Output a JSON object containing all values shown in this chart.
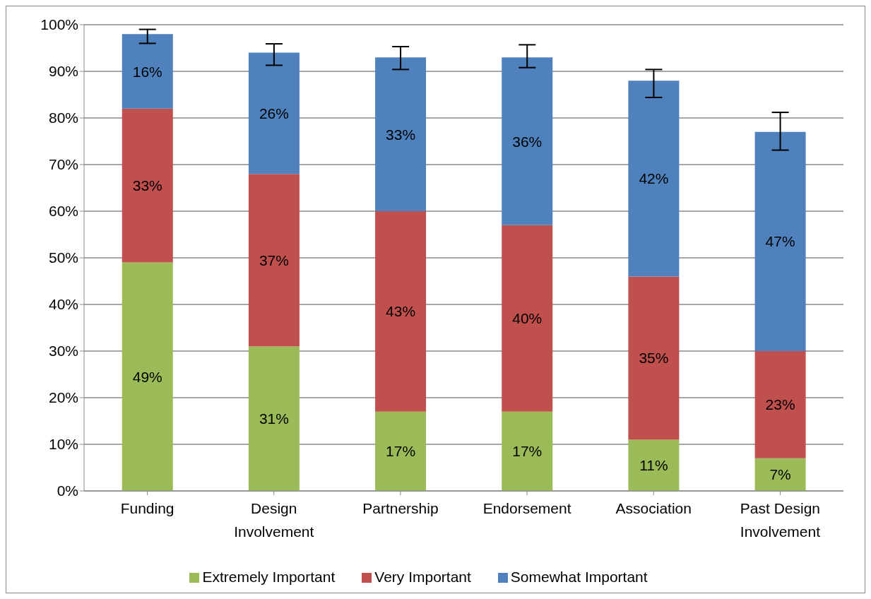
{
  "chart_data": {
    "type": "bar",
    "stacked": true,
    "categories": [
      "Funding",
      "Design Involvement",
      "Partnership",
      "Endorsement",
      "Association",
      "Past Design Involvement"
    ],
    "series": [
      {
        "name": "Extremely Important",
        "color": "#9bbb59",
        "values": [
          49,
          31,
          17,
          17,
          11,
          7
        ],
        "value_labels": [
          "49%",
          "31%",
          "17%",
          "17%",
          "11%",
          "7%"
        ]
      },
      {
        "name": "Very Important",
        "color": "#c0504d",
        "values": [
          33,
          37,
          43,
          40,
          35,
          23
        ],
        "value_labels": [
          "33%",
          "37%",
          "43%",
          "40%",
          "35%",
          "23%"
        ]
      },
      {
        "name": "Somewhat Important",
        "color": "#4f81bd",
        "values": [
          16,
          26,
          33,
          36,
          42,
          47
        ],
        "value_labels": [
          "16%",
          "26%",
          "33%",
          "36%",
          "42%",
          "47%"
        ],
        "errors": [
          [
            96,
            99
          ],
          [
            91.3,
            95.9
          ],
          [
            90.4,
            95.3
          ],
          [
            90.8,
            95.7
          ],
          [
            84.4,
            90.4
          ],
          [
            73.1,
            81.2
          ]
        ]
      }
    ],
    "ylim": [
      0,
      100
    ],
    "yticks": [
      {
        "value": 0,
        "label": "0%"
      },
      {
        "value": 10,
        "label": "10%"
      },
      {
        "value": 20,
        "label": "20%"
      },
      {
        "value": 30,
        "label": "30%"
      },
      {
        "value": 40,
        "label": "40%"
      },
      {
        "value": 50,
        "label": "50%"
      },
      {
        "value": 60,
        "label": "60%"
      },
      {
        "value": 70,
        "label": "70%"
      },
      {
        "value": 80,
        "label": "80%"
      },
      {
        "value": 90,
        "label": "90%"
      },
      {
        "value": 100,
        "label": "100%"
      }
    ],
    "grid": "y",
    "legend": "bottom"
  }
}
